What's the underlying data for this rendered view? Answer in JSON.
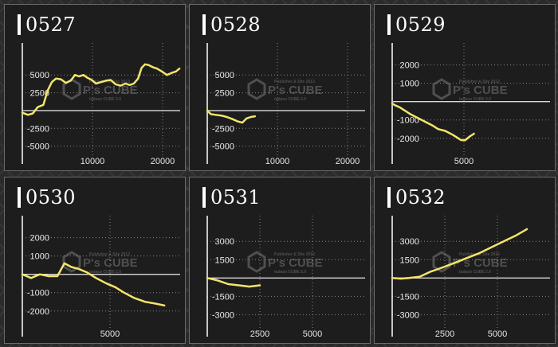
{
  "colors": {
    "background": "#2b2b2b",
    "panel": "#1d1d1d",
    "line": "#f2e56b",
    "axis": "#ffffff",
    "grid": "#888888",
    "text": "#ffffff"
  },
  "watermark": {
    "brand": "P's CUBE",
    "line1": "Publisher & Site 2013",
    "line2": "tadaso CUBE 2.0"
  },
  "chart_data": [
    {
      "type": "line",
      "title": "0527",
      "grid": true,
      "xlim": [
        0,
        22500
      ],
      "ylim": [
        -7500,
        9500
      ],
      "xticks": [
        10000,
        20000
      ],
      "xtick_labels": [
        "10000",
        "20000"
      ],
      "yticks": [
        5000,
        2500,
        -2500,
        -5000
      ],
      "ytick_labels": [
        "5000",
        "2500",
        "-2500",
        "-5000"
      ],
      "x": [
        0,
        800,
        1500,
        2200,
        3000,
        3600,
        4200,
        4800,
        5500,
        6200,
        6900,
        7500,
        8100,
        8700,
        9300,
        9900,
        10500,
        11200,
        11900,
        12600,
        13300,
        14000,
        14700,
        15300,
        15900,
        16500,
        17000,
        17500,
        18000,
        18600,
        19200,
        19900,
        20600,
        21300,
        21900,
        22400
      ],
      "y": [
        -300,
        -600,
        -400,
        500,
        800,
        2800,
        4000,
        4500,
        4400,
        3900,
        4200,
        5000,
        4800,
        5000,
        4600,
        4300,
        3800,
        4000,
        4200,
        4300,
        3700,
        3500,
        3800,
        3600,
        3800,
        4500,
        6000,
        6500,
        6400,
        6100,
        5900,
        5500,
        5000,
        5300,
        5500,
        5900
      ]
    },
    {
      "type": "line",
      "title": "0528",
      "grid": true,
      "xlim": [
        0,
        22500
      ],
      "ylim": [
        -7500,
        9500
      ],
      "xticks": [
        10000,
        20000
      ],
      "xtick_labels": [
        "10000",
        "20000"
      ],
      "yticks": [
        5000,
        2500,
        -2500,
        -5000
      ],
      "ytick_labels": [
        "5000",
        "2500",
        "-2500",
        "-5000"
      ],
      "x": [
        0,
        500,
        1200,
        2000,
        2800,
        3600,
        4300,
        5000,
        5600,
        6200,
        6800
      ],
      "y": [
        0,
        -500,
        -600,
        -700,
        -900,
        -1200,
        -1500,
        -1700,
        -1100,
        -900,
        -800
      ]
    },
    {
      "type": "line",
      "title": "0529",
      "grid": true,
      "xlim": [
        0,
        11000
      ],
      "ylim": [
        -3400,
        3200
      ],
      "xticks": [
        5000
      ],
      "xtick_labels": [
        "5000"
      ],
      "yticks": [
        2000,
        1000,
        -1000,
        -2000
      ],
      "ytick_labels": [
        "2000",
        "1000",
        "-1000",
        "-2000"
      ],
      "x": [
        0,
        200,
        500,
        900,
        1300,
        1800,
        2300,
        2800,
        3200,
        3700,
        4200,
        4500,
        4800,
        5100,
        5400,
        5700
      ],
      "y": [
        -100,
        -200,
        -300,
        -500,
        -700,
        -900,
        -1100,
        -1300,
        -1500,
        -1600,
        -1800,
        -1950,
        -2100,
        -2100,
        -1900,
        -1750
      ]
    },
    {
      "type": "line",
      "title": "0530",
      "grid": true,
      "xlim": [
        0,
        9000
      ],
      "ylim": [
        -3400,
        3200
      ],
      "xticks": [
        5000
      ],
      "xtick_labels": [
        "5000"
      ],
      "yticks": [
        2000,
        1000,
        -1000,
        -2000
      ],
      "ytick_labels": [
        "2000",
        "1000",
        "-1000",
        "-2000"
      ],
      "x": [
        0,
        500,
        1000,
        1500,
        2000,
        2400,
        2800,
        3200,
        3700,
        4200,
        4800,
        5300,
        5800,
        6400,
        7000,
        7600,
        8100
      ],
      "y": [
        0,
        -200,
        0,
        -100,
        -100,
        600,
        400,
        300,
        100,
        -200,
        -500,
        -700,
        -1000,
        -1300,
        -1500,
        -1600,
        -1700
      ]
    },
    {
      "type": "line",
      "title": "0531",
      "grid": true,
      "xlim": [
        0,
        7500
      ],
      "ylim": [
        -4800,
        5100
      ],
      "xticks": [
        2500,
        5000
      ],
      "xtick_labels": [
        "2500",
        "5000"
      ],
      "yticks": [
        3000,
        1500,
        -1500,
        -3000
      ],
      "ytick_labels": [
        "3000",
        "1500",
        "-1500",
        "-3000"
      ],
      "x": [
        0,
        500,
        1000,
        1500,
        2000,
        2500
      ],
      "y": [
        0,
        -200,
        -500,
        -600,
        -700,
        -600
      ]
    },
    {
      "type": "line",
      "title": "0532",
      "grid": true,
      "xlim": [
        0,
        7500
      ],
      "ylim": [
        -4800,
        5100
      ],
      "xticks": [
        2500,
        5000
      ],
      "xtick_labels": [
        "2500",
        "5000"
      ],
      "yticks": [
        3000,
        1500,
        -1500,
        -3000
      ],
      "ytick_labels": [
        "3000",
        "1500",
        "-1500",
        "-3000"
      ],
      "x": [
        0,
        400,
        800,
        1300,
        1800,
        2300,
        2900,
        3500,
        4100,
        4700,
        5300,
        5900,
        6400
      ],
      "y": [
        0,
        -50,
        0,
        100,
        500,
        800,
        1200,
        1600,
        2000,
        2500,
        3000,
        3500,
        4000
      ]
    }
  ]
}
